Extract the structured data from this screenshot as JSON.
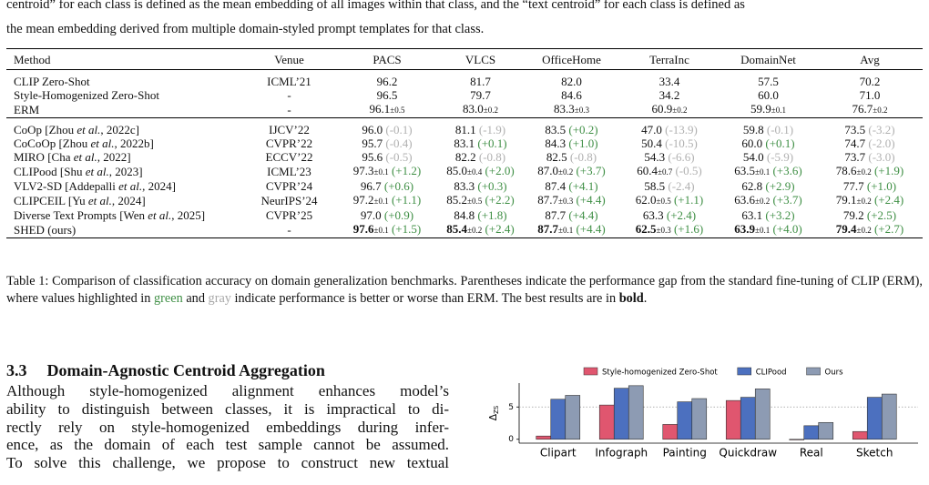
{
  "intro_lines": [
    "centroid” for each class is defined as the mean embedding of all images within that class, and the “text centroid” for each class is defined as",
    "the mean embedding derived from multiple domain-styled prompt templates for that class."
  ],
  "table": {
    "header": [
      "Method",
      "Venue",
      "PACS",
      "VLCS",
      "OfficeHome",
      "TerraInc",
      "DomainNet",
      "Avg"
    ],
    "gap_colors": {
      "better": "#3f8f45",
      "worse": "#b0b0b0"
    },
    "groups": [
      [
        {
          "method": [
            "CLIP Zero-Shot"
          ],
          "venue": "ICML’21",
          "cells": [
            {
              "v": "96.2"
            },
            {
              "v": "81.7"
            },
            {
              "v": "82.0"
            },
            {
              "v": "33.4"
            },
            {
              "v": "57.5"
            },
            {
              "v": "70.2"
            }
          ]
        },
        {
          "method": [
            "Style-Homogenized Zero-Shot"
          ],
          "venue": "-",
          "cells": [
            {
              "v": "96.5"
            },
            {
              "v": "79.7"
            },
            {
              "v": "84.6"
            },
            {
              "v": "34.2"
            },
            {
              "v": "60.0"
            },
            {
              "v": "71.0"
            }
          ]
        },
        {
          "method": [
            "ERM"
          ],
          "venue": "-",
          "cells": [
            {
              "v": "96.1",
              "sd": "±0.5"
            },
            {
              "v": "83.0",
              "sd": "±0.2"
            },
            {
              "v": "83.3",
              "sd": "±0.3"
            },
            {
              "v": "60.9",
              "sd": "±0.2"
            },
            {
              "v": "59.9",
              "sd": "±0.1"
            },
            {
              "v": "76.7",
              "sd": "±0.2"
            }
          ]
        }
      ],
      [
        {
          "method": [
            "CoOp [Zhou ",
            "et al.",
            ", 2022c]"
          ],
          "venue": "IJCV’22",
          "cells": [
            {
              "v": "96.0",
              "gap": "(-0.1)"
            },
            {
              "v": "81.1",
              "gap": "(-1.9)"
            },
            {
              "v": "83.5",
              "gap": "(+0.2)"
            },
            {
              "v": "47.0",
              "gap": "(-13.9)"
            },
            {
              "v": "59.8",
              "gap": "(-0.1)"
            },
            {
              "v": "73.5",
              "gap": "(-3.2)"
            }
          ]
        },
        {
          "method": [
            "CoCoOp [Zhou ",
            "et al.",
            ", 2022b]"
          ],
          "venue": "CVPR’22",
          "cells": [
            {
              "v": "95.7",
              "gap": "(-0.4)"
            },
            {
              "v": "83.1",
              "gap": "(+0.1)"
            },
            {
              "v": "84.3",
              "gap": "(+1.0)"
            },
            {
              "v": "50.4",
              "gap": "(-10.5)"
            },
            {
              "v": "60.0",
              "gap": "(+0.1)"
            },
            {
              "v": "74.7",
              "gap": "(-2.0)"
            }
          ]
        },
        {
          "method": [
            "MIRO [Cha ",
            "et al.",
            ", 2022]"
          ],
          "venue": "ECCV’22",
          "cells": [
            {
              "v": "95.6",
              "gap": "(-0.5)"
            },
            {
              "v": "82.2",
              "gap": "(-0.8)"
            },
            {
              "v": "82.5",
              "gap": "(-0.8)"
            },
            {
              "v": "54.3",
              "gap": "(-6.6)"
            },
            {
              "v": "54.0",
              "gap": "(-5.9)"
            },
            {
              "v": "73.7",
              "gap": "(-3.0)"
            }
          ]
        },
        {
          "method": [
            "CLIPood [Shu ",
            "et al.",
            ", 2023]"
          ],
          "venue": "ICML’23",
          "cells": [
            {
              "v": "97.3",
              "sd": "±0.1",
              "gap": "(+1.2)"
            },
            {
              "v": "85.0",
              "sd": "±0.4",
              "gap": "(+2.0)"
            },
            {
              "v": "87.0",
              "sd": "±0.2",
              "gap": "(+3.7)"
            },
            {
              "v": "60.4",
              "sd": "±0.7",
              "gap": "(-0.5)"
            },
            {
              "v": "63.5",
              "sd": "±0.1",
              "gap": "(+3.6)"
            },
            {
              "v": "78.6",
              "sd": "±0.2",
              "gap": "(+1.9)"
            }
          ]
        },
        {
          "method": [
            "VLV2-SD [Addepalli ",
            "et al.",
            ", 2024]"
          ],
          "venue": "CVPR’24",
          "cells": [
            {
              "v": "96.7",
              "gap": "(+0.6)"
            },
            {
              "v": "83.3",
              "gap": "(+0.3)"
            },
            {
              "v": "87.4",
              "gap": "(+4.1)"
            },
            {
              "v": "58.5",
              "gap": "(-2.4)"
            },
            {
              "v": "62.8",
              "gap": "(+2.9)"
            },
            {
              "v": "77.7",
              "gap": "(+1.0)"
            }
          ]
        },
        {
          "method": [
            "CLIPCEIL [Yu ",
            "et al.",
            ", 2024]"
          ],
          "venue": "NeurIPS’24",
          "cells": [
            {
              "v": "97.2",
              "sd": "±0.1",
              "gap": "(+1.1)"
            },
            {
              "v": "85.2",
              "sd": "±0.5",
              "gap": "(+2.2)"
            },
            {
              "v": "87.7",
              "sd": "±0.3",
              "gap": "(+4.4)"
            },
            {
              "v": "62.0",
              "sd": "±0.5",
              "gap": "(+1.1)"
            },
            {
              "v": "63.6",
              "sd": "±0.2",
              "gap": "(+3.7)"
            },
            {
              "v": "79.1",
              "sd": "±0.2",
              "gap": "(+2.4)"
            }
          ]
        },
        {
          "method": [
            "Diverse Text Prompts [Wen ",
            "et al.",
            ", 2025]"
          ],
          "venue": "CVPR’25",
          "cells": [
            {
              "v": "97.0",
              "gap": "(+0.9)"
            },
            {
              "v": "84.8",
              "gap": "(+1.8)"
            },
            {
              "v": "87.7",
              "gap": "(+4.4)"
            },
            {
              "v": "63.3",
              "gap": "(+2.4)"
            },
            {
              "v": "63.1",
              "gap": "(+3.2)"
            },
            {
              "v": "79.2",
              "gap": "(+2.5)"
            }
          ]
        },
        {
          "method": [
            "SHED (ours)"
          ],
          "venue": "-",
          "bold": true,
          "cells": [
            {
              "v": "97.6",
              "sd": "±0.1",
              "gap": "(+1.5)"
            },
            {
              "v": "85.4",
              "sd": "±0.2",
              "gap": "(+2.4)"
            },
            {
              "v": "87.7",
              "sd": "±0.1",
              "gap": "(+4.4)"
            },
            {
              "v": "62.5",
              "sd": "±0.3",
              "gap": "(+1.6)"
            },
            {
              "v": "63.9",
              "sd": "±0.1",
              "gap": "(+4.0)"
            },
            {
              "v": "79.4",
              "sd": "±0.2",
              "gap": "(+2.7)"
            }
          ]
        }
      ]
    ],
    "caption": [
      {
        "text": "Table 1: Comparison of classification accuracy on domain generalization benchmarks. Parentheses indicate the performance gap from the standard fine-tuning of CLIP (ERM), where values highlighted in "
      },
      {
        "text": "green",
        "color": "#3f8f45"
      },
      {
        "text": " and "
      },
      {
        "text": "gray",
        "color": "#a8a8a8"
      },
      {
        "text": " indicate performance is better or worse than ERM. The best results are in "
      },
      {
        "text": "bold",
        "bold": true
      },
      {
        "text": "."
      }
    ]
  },
  "section": {
    "number": "3.3",
    "title": "Domain-Agnostic Centroid Aggregation"
  },
  "body_lines": [
    "Although style-homogenized alignment enhances model’s",
    "ability to distinguish between classes, it is impractical to di-",
    "rectly rely on style-homogenized embeddings during infer-",
    "ence, as the domain of each test sample cannot be assumed.",
    "To solve this challenge, we propose to construct new textual"
  ],
  "chart_data": {
    "type": "bar",
    "ylabel": {
      "symbol": "Δ",
      "subscript": "ZS"
    },
    "categories": [
      "Clipart",
      "Infograph",
      "Painting",
      "Quickdraw",
      "Real",
      "Sketch"
    ],
    "series": [
      {
        "name": "Style-homogenized Zero-Shot",
        "color": "#e0566f",
        "values": [
          0.5,
          5.3,
          2.3,
          6.0,
          -0.1,
          1.2
        ]
      },
      {
        "name": "CLIPood",
        "color": "#4c70bf",
        "values": [
          6.2,
          7.9,
          5.8,
          6.5,
          2.1,
          6.5
        ]
      },
      {
        "name": "Ours",
        "color": "#8d9bb3",
        "values": [
          6.8,
          8.3,
          6.3,
          7.8,
          2.6,
          7.0
        ]
      }
    ],
    "ylim": [
      -0.6,
      8.7
    ],
    "yticks": [
      0,
      5
    ],
    "grid": true
  }
}
